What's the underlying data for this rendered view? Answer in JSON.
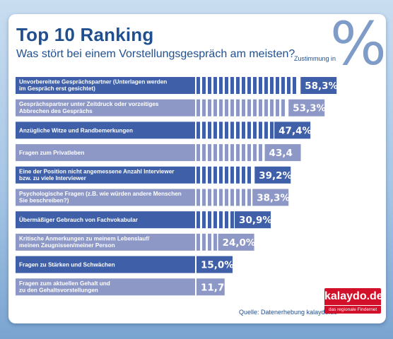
{
  "header": {
    "title": "Top 10 Ranking",
    "subtitle": "Was stört bei einem Vorstellungsgespräch am meisten?",
    "unit_label": "Zustimmung in",
    "unit_symbol": "%"
  },
  "footer": {
    "source": "Quelle: Datenerhebung kalaydo.de"
  },
  "logo": {
    "name": "kalaydo.de",
    "tagline": "das regionale Findernet",
    "color": "#d3102a"
  },
  "colors": {
    "bar_dark": "#3f60a8",
    "bar_light": "#8d98c7",
    "background": "#a6c6e6"
  },
  "chart_data": {
    "type": "bar",
    "orientation": "horizontal",
    "title": "Top 10 Ranking",
    "subtitle": "Was stört bei einem Vorstellungsgespräch am meisten?",
    "unit": "%",
    "categories": [
      [
        "Unvorbereitete Gesprächspartner (Unterlagen werden",
        "im Gespräch erst gesichtet)"
      ],
      [
        "Gesprächspartner unter Zeitdruck oder vorzeitiges",
        "Abbrechen des Gesprächs"
      ],
      [
        "Anzügliche Witze und Randbemerkungen"
      ],
      [
        "Fragen zum Privatleben"
      ],
      [
        "Eine der Position nicht angemessene Anzahl Interviewer",
        "bzw. zu viele Interviewer"
      ],
      [
        "Psychologische Fragen (z.B. wie würden andere Menschen",
        "Sie beschreiben?)"
      ],
      [
        "Übermäßiger Gebrauch von Fachvokabular"
      ],
      [
        "Kritische Anmerkungen zu meinem Lebenslauf/",
        "meinen Zeugnissen/meiner Person"
      ],
      [
        "Fragen zu Stärken und Schwächen"
      ],
      [
        "Fragen zum aktuellen Gehalt und",
        "zu den Gehaltsvorstellungen"
      ]
    ],
    "values": [
      58.3,
      53.3,
      47.4,
      43.4,
      39.2,
      38.3,
      30.9,
      24.0,
      15.0,
      11.7
    ],
    "value_labels": [
      "58,3%",
      "53,3%",
      "47,4%",
      "43,4",
      "39,2%",
      "38,3%",
      "30,9%",
      "24,0%",
      "15,0%",
      "11,7%"
    ]
  }
}
